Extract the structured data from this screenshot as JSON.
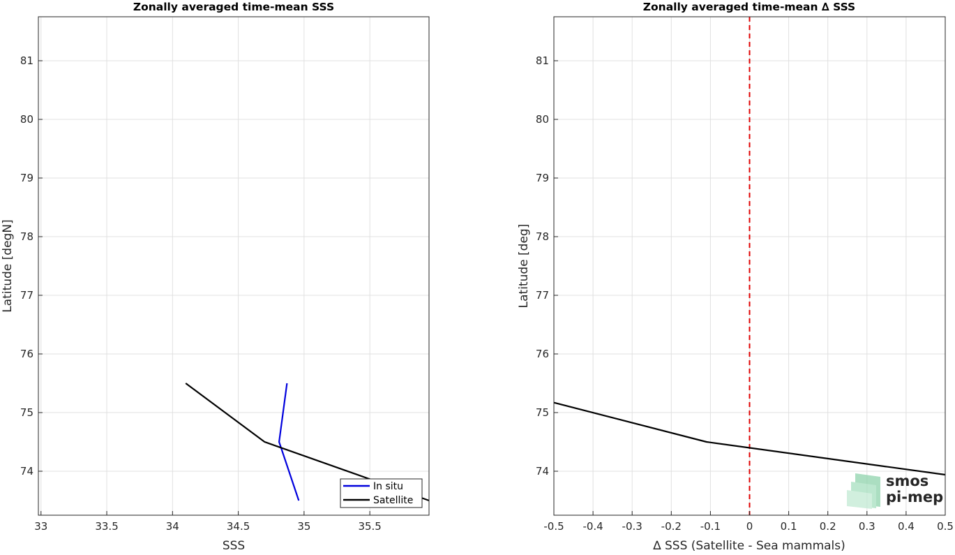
{
  "chart_data": [
    {
      "type": "line",
      "title": "Zonally averaged time-mean SSS",
      "xlabel": "SSS",
      "ylabel": "Latitude [degN]",
      "xlim": [
        32.98,
        35.95
      ],
      "ylim": [
        73.25,
        81.75
      ],
      "x_ticks": [
        "33",
        "33.5",
        "34",
        "34.5",
        "35",
        "35.5"
      ],
      "y_ticks": [
        "74",
        "75",
        "76",
        "77",
        "78",
        "79",
        "80",
        "81"
      ],
      "grid": true,
      "legend_position": "bottom-right",
      "series": [
        {
          "name": "In situ",
          "color": "#0000dd",
          "x": [
            34.87,
            34.81,
            34.96
          ],
          "y": [
            75.5,
            74.5,
            73.5
          ]
        },
        {
          "name": "Satellite",
          "color": "#000000",
          "x": [
            34.1,
            34.7,
            35.52,
            35.95
          ],
          "y": [
            75.5,
            74.5,
            73.85,
            73.5
          ]
        }
      ]
    },
    {
      "type": "line",
      "title": "Zonally averaged time-mean ∆ SSS",
      "xlabel": "∆ SSS (Satellite - Sea mammals)",
      "ylabel": "Latitude [deg]",
      "xlim": [
        -0.5,
        0.5
      ],
      "ylim": [
        73.25,
        81.75
      ],
      "x_ticks": [
        "-0.5",
        "-0.4",
        "-0.3",
        "-0.2",
        "-0.1",
        "0",
        "0.1",
        "0.2",
        "0.3",
        "0.4",
        "0.5"
      ],
      "y_ticks": [
        "74",
        "75",
        "76",
        "77",
        "78",
        "79",
        "80",
        "81"
      ],
      "grid": true,
      "reference_line": {
        "x": 0,
        "color": "#e00000",
        "style": "dashed"
      },
      "series": [
        {
          "color": "#000000",
          "x": [
            -0.5,
            -0.11,
            0.5
          ],
          "y": [
            75.17,
            74.5,
            73.94
          ]
        }
      ]
    }
  ],
  "logo": {
    "line1": "smos",
    "line2": "pi-mep",
    "color1": "#7fc9a0",
    "color2": "#6f8f80"
  }
}
